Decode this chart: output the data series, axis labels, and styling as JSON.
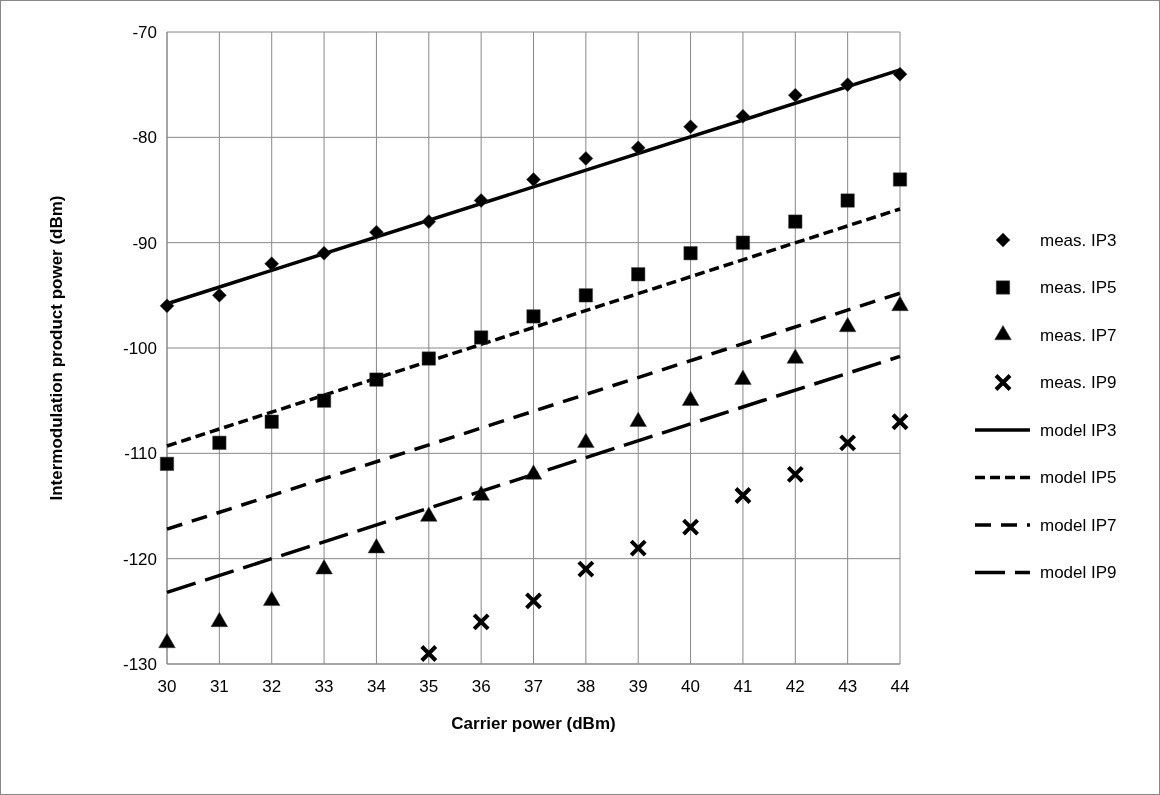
{
  "chart_data": {
    "type": "scatter",
    "xlabel": "Carrier power (dBm)",
    "ylabel": "Intermodulation product power (dBm)",
    "xlim": [
      30,
      44
    ],
    "xticks": [
      30,
      31,
      32,
      33,
      34,
      35,
      36,
      37,
      38,
      39,
      40,
      41,
      42,
      43,
      44
    ],
    "ylim": [
      -130,
      -70
    ],
    "yticks": [
      -130,
      -120,
      -110,
      -100,
      -90,
      -80,
      -70
    ],
    "grid": true,
    "legend": "right",
    "series": [
      {
        "name": "meas. IP3",
        "marker": "diamond",
        "color": "#000000",
        "x": [
          30,
          31,
          32,
          33,
          34,
          35,
          36,
          37,
          38,
          39,
          40,
          41,
          42,
          43,
          44
        ],
        "values": [
          -96,
          -95,
          -92,
          -91,
          -89,
          -88,
          -86,
          -84,
          -82,
          -81,
          -79,
          -78,
          -76,
          -75,
          -74
        ]
      },
      {
        "name": "meas. IP5",
        "marker": "square",
        "color": "#000000",
        "x": [
          30,
          31,
          32,
          33,
          34,
          35,
          36,
          37,
          38,
          39,
          40,
          41,
          42,
          43,
          44
        ],
        "values": [
          -111,
          -109,
          -107,
          -105,
          -103,
          -101,
          -99,
          -97,
          -95,
          -93,
          -91,
          -90,
          -88,
          -86,
          -84
        ]
      },
      {
        "name": "meas. IP7",
        "marker": "triangle",
        "color": "#000000",
        "x": [
          30,
          31,
          32,
          33,
          34,
          35,
          36,
          37,
          38,
          39,
          40,
          41,
          42,
          43,
          44
        ],
        "values": [
          -128,
          -126,
          -124,
          -121,
          -119,
          -116,
          -114,
          -112,
          -109,
          -107,
          -105,
          -103,
          -101,
          -98,
          -96
        ]
      },
      {
        "name": "meas. IP9",
        "marker": "cross",
        "color": "#000000",
        "x": [
          35,
          36,
          37,
          38,
          39,
          40,
          41,
          42,
          43,
          44
        ],
        "values": [
          -129,
          -126,
          -124,
          -121,
          -119,
          -117,
          -114,
          -112,
          -109,
          -107
        ]
      },
      {
        "name": "model IP3",
        "type": "line",
        "line_style": "solid",
        "color": "#000000",
        "x": [
          30,
          44
        ],
        "values": [
          -95.8,
          -73.6
        ]
      },
      {
        "name": "model IP5",
        "type": "line",
        "line_style": "dotted",
        "color": "#000000",
        "x": [
          30,
          44
        ],
        "values": [
          -109.3,
          -86.8
        ]
      },
      {
        "name": "model IP7",
        "type": "line",
        "line_style": "dashed",
        "color": "#000000",
        "x": [
          30,
          44
        ],
        "values": [
          -117.2,
          -94.8
        ]
      },
      {
        "name": "model IP9",
        "type": "line",
        "line_style": "longdash",
        "color": "#000000",
        "x": [
          30,
          44
        ],
        "values": [
          -123.2,
          -100.8
        ]
      }
    ]
  }
}
